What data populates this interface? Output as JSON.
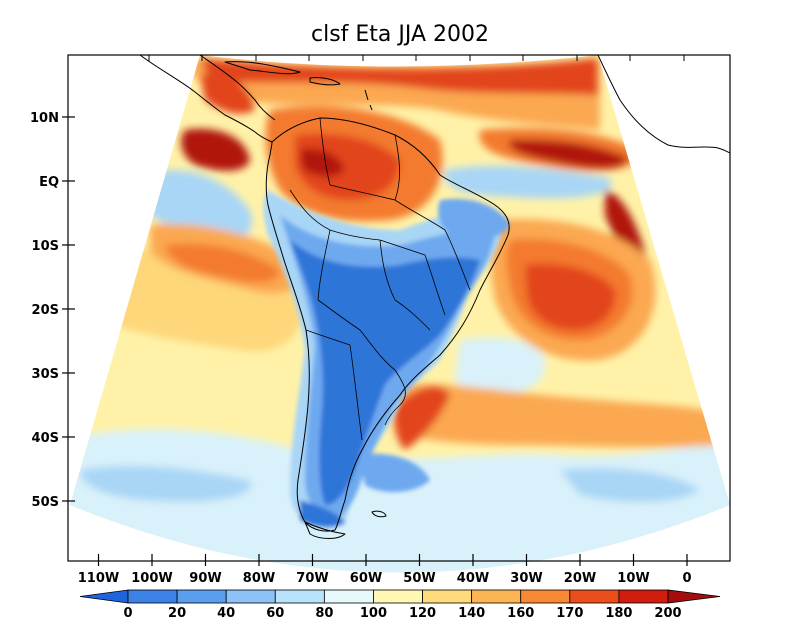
{
  "title": "clsf Eta JJA 2002",
  "lat_labels": [
    "10N",
    "EQ",
    "10S",
    "20S",
    "30S",
    "40S",
    "50S"
  ],
  "lon_labels": [
    "110W",
    "100W",
    "90W",
    "80W",
    "70W",
    "60W",
    "50W",
    "40W",
    "30W",
    "20W",
    "10W",
    "0"
  ],
  "colorbar": {
    "labels": [
      "0",
      "20",
      "40",
      "60",
      "80",
      "100",
      "120",
      "140",
      "160",
      "170",
      "180",
      "200"
    ],
    "colors": [
      "#1e64dc",
      "#3c82e6",
      "#5a9fef",
      "#8cc2f7",
      "#b9e3fb",
      "#e8f9fc",
      "#fff7b3",
      "#fedc7b",
      "#fdb454",
      "#f88934",
      "#ea4e1c",
      "#cf1d10",
      "#a30d0d"
    ]
  },
  "palette": {
    "deep_blue": "#2f74d8",
    "mid_blue": "#6ea9ef",
    "light_blue": "#a9d6f6",
    "pale_blue": "#d9f1fa",
    "pale_yellow": "#fff2a8",
    "yellow": "#fed77a",
    "orange": "#fba851",
    "dark_orange": "#f37a2e",
    "red": "#e2441a",
    "dark_red": "#b1160e"
  }
}
